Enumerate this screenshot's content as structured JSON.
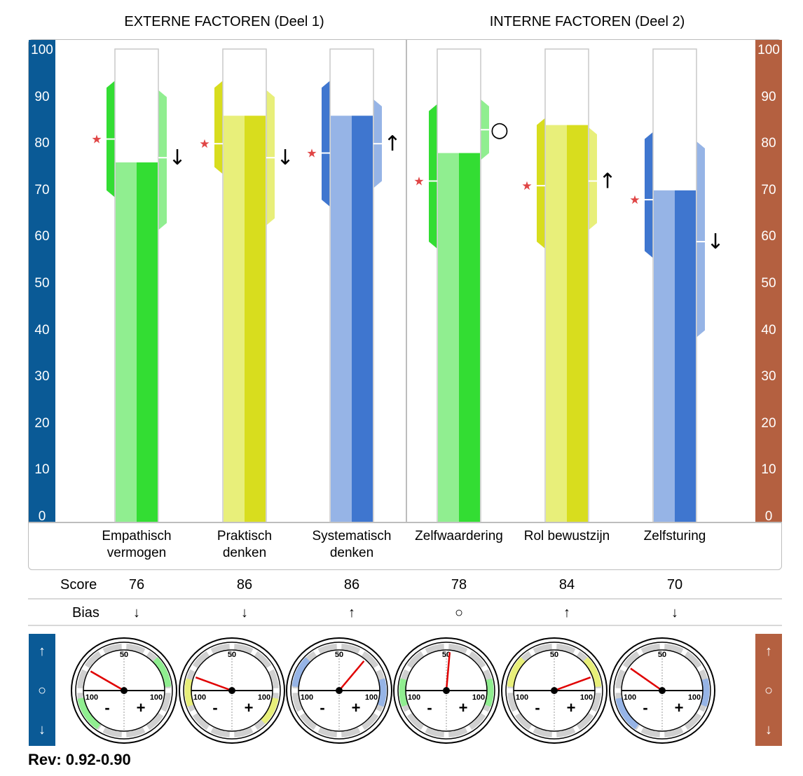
{
  "header": {
    "left_title": "EXTERNE FACTOREN (Deel 1)",
    "right_title": "INTERNE FACTOREN (Deel 2)"
  },
  "axis_ticks": [
    "100",
    "90",
    "80",
    "70",
    "60",
    "50",
    "40",
    "30",
    "20",
    "10",
    "0"
  ],
  "rows": {
    "score_label": "Score",
    "bias_label": "Bias"
  },
  "side_symbols": [
    "↑",
    "○",
    "↓"
  ],
  "rev_label": "Rev: 0.92-0.90",
  "colors": {
    "left_axis": "#0a5a96",
    "right_axis": "#b46040",
    "green_dark": "#33dd33",
    "green_light": "#90ee90",
    "yellow_dark": "#d8dd1e",
    "yellow_light": "#e8ef7a",
    "blue_dark": "#3f76cf",
    "blue_light": "#96b4e6",
    "star": "#e04545"
  },
  "chart_data": {
    "type": "bar",
    "ylim": [
      0,
      100
    ],
    "categories": [
      {
        "label_lines": [
          "Empathisch",
          "vermogen"
        ],
        "color": "green",
        "score": "76",
        "bias": "↓",
        "value": 76,
        "star": 81,
        "left_range": [
          70,
          92
        ],
        "right_range": [
          63,
          90
        ],
        "right_tick": 77,
        "bias_symbol": "↓",
        "gauge_needle": 30,
        "gauge_marks": [
          "left-bottom",
          "right-top"
        ]
      },
      {
        "label_lines": [
          "Praktisch",
          "denken"
        ],
        "color": "yellow",
        "score": "86",
        "bias": "↓",
        "value": 86,
        "star": 80,
        "left_range": [
          75,
          92
        ],
        "right_range": [
          64,
          90
        ],
        "right_tick": 77,
        "bias_symbol": "↓",
        "gauge_needle": 20,
        "gauge_marks": [
          "left",
          "right-bottom"
        ]
      },
      {
        "label_lines": [
          "Systematisch",
          "denken"
        ],
        "color": "blue",
        "score": "86",
        "bias": "↑",
        "value": 86,
        "star": 78,
        "left_range": [
          68,
          92
        ],
        "right_range": [
          72,
          88
        ],
        "right_tick": 80,
        "bias_symbol": "↑",
        "gauge_needle": 130,
        "gauge_marks": [
          "left-top",
          "right"
        ]
      },
      {
        "label_lines": [
          "Zelfwaardering"
        ],
        "color": "green",
        "score": "78",
        "bias": "○",
        "value": 78,
        "star": 72,
        "left_range": [
          59,
          87
        ],
        "right_range": [
          78,
          88
        ],
        "right_tick": 83,
        "bias_symbol": "○",
        "gauge_needle": 95,
        "gauge_marks": [
          "left",
          "right"
        ]
      },
      {
        "label_lines": [
          "Rol bewustzijn"
        ],
        "color": "yellow",
        "score": "84",
        "bias": "↑",
        "value": 84,
        "star": 71,
        "left_range": [
          59,
          84
        ],
        "right_range": [
          63,
          82
        ],
        "right_tick": 72,
        "bias_symbol": "↑",
        "gauge_needle": 160,
        "gauge_marks": [
          "left-top",
          "right-top"
        ]
      },
      {
        "label_lines": [
          "Zelfsturing"
        ],
        "color": "blue",
        "score": "70",
        "bias": "↓",
        "value": 70,
        "star": 68,
        "left_range": [
          57,
          81
        ],
        "right_range": [
          40,
          79
        ],
        "right_tick": 59,
        "bias_symbol": "↓",
        "gauge_needle": 35,
        "gauge_marks": [
          "left-bottom",
          "right"
        ]
      }
    ],
    "gauge_labels": {
      "top": "50",
      "left": "100",
      "right": "100",
      "minus": "-",
      "plus": "+"
    }
  }
}
